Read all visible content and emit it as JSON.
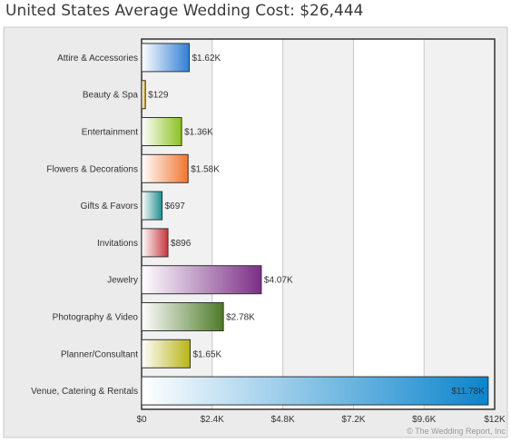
{
  "header": {
    "title": "United States Average Wedding Cost: $26,444"
  },
  "credit": "© The Wedding Report, Inc",
  "chart_data": {
    "type": "bar",
    "orientation": "horizontal",
    "categories": [
      "Attire & Accessories",
      "Beauty & Spa",
      "Entertainment",
      "Flowers & Decorations",
      "Gifts & Favors",
      "Invitations",
      "Jewelry",
      "Photography & Video",
      "Planner/Consultant",
      "Venue, Catering & Rentals"
    ],
    "values": [
      1620,
      129,
      1360,
      1580,
      697,
      896,
      4070,
      2780,
      1650,
      11780
    ],
    "value_labels": [
      "$1.62K",
      "$129",
      "$1.36K",
      "$1.58K",
      "$697",
      "$896",
      "$4.07K",
      "$2.78K",
      "$1.65K",
      "$11.78K"
    ],
    "colors": [
      "#2f7fd6",
      "#e8b318",
      "#8cc21d",
      "#f2752e",
      "#1e8f8f",
      "#c8353c",
      "#7b2f86",
      "#4e7a28",
      "#b9b515",
      "#0a84cc"
    ],
    "xlim": [
      0,
      12000
    ],
    "ticks": [
      0,
      2400,
      4800,
      7200,
      9600,
      12000
    ],
    "tick_labels": [
      "$0",
      "$2.4K",
      "$4.8K",
      "$7.2K",
      "$9.6K",
      "$12K"
    ],
    "grid": true,
    "legend": "none",
    "title": "United States Average Wedding Cost: $26,444",
    "xlabel": "",
    "ylabel": ""
  }
}
